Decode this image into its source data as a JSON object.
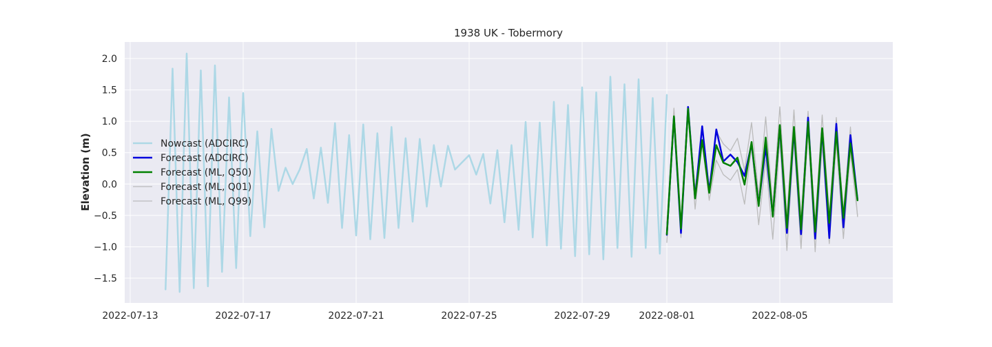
{
  "chart_data": {
    "type": "line",
    "title": "1938 UK - Tobermory",
    "xlabel": "",
    "ylabel": "Elevation (m)",
    "x_tick_labels": [
      "2022-07-13",
      "2022-07-17",
      "2022-07-21",
      "2022-07-25",
      "2022-07-29",
      "2022-08-01",
      "2022-08-05"
    ],
    "x_tick_dates": [
      "2022-07-13",
      "2022-07-17",
      "2022-07-21",
      "2022-07-25",
      "2022-07-29",
      "2022-08-01",
      "2022-08-05"
    ],
    "y_ticks": [
      -1.5,
      -1.0,
      -0.5,
      0.0,
      0.5,
      1.0,
      1.5,
      2.0
    ],
    "y_tick_labels": [
      "−1.5",
      "−1.0",
      "−0.5",
      "0.0",
      "0.5",
      "1.0",
      "1.5",
      "2.0"
    ],
    "xlim": [
      "2022-07-13",
      "2022-08-09"
    ],
    "ylim": [
      -1.9,
      2.25
    ],
    "grid": true,
    "legend_position": "center-left",
    "series": [
      {
        "name": "Nowcast (ADCIRC)",
        "color": "#add8e6",
        "width": 2.5,
        "points": [
          [
            "2022-07-14 06:00",
            -1.68
          ],
          [
            "2022-07-14 12:00",
            1.84
          ],
          [
            "2022-07-14 18:00",
            -1.72
          ],
          [
            "2022-07-15 00:00",
            2.08
          ],
          [
            "2022-07-15 06:00",
            -1.66
          ],
          [
            "2022-07-15 12:00",
            1.81
          ],
          [
            "2022-07-15 18:00",
            -1.63
          ],
          [
            "2022-07-16 00:00",
            1.89
          ],
          [
            "2022-07-16 06:00",
            -1.4
          ],
          [
            "2022-07-16 12:00",
            1.38
          ],
          [
            "2022-07-16 18:00",
            -1.34
          ],
          [
            "2022-07-17 00:00",
            1.45
          ],
          [
            "2022-07-17 06:00",
            -0.83
          ],
          [
            "2022-07-17 12:00",
            0.84
          ],
          [
            "2022-07-17 18:00",
            -0.69
          ],
          [
            "2022-07-18 00:00",
            0.88
          ],
          [
            "2022-07-18 06:00",
            -0.11
          ],
          [
            "2022-07-18 12:00",
            0.26
          ],
          [
            "2022-07-18 18:00",
            0.0
          ],
          [
            "2022-07-19 00:00",
            0.23
          ],
          [
            "2022-07-19 06:00",
            0.56
          ],
          [
            "2022-07-19 12:00",
            -0.23
          ],
          [
            "2022-07-19 18:00",
            0.58
          ],
          [
            "2022-07-20 00:00",
            -0.3
          ],
          [
            "2022-07-20 06:00",
            0.97
          ],
          [
            "2022-07-20 12:00",
            -0.7
          ],
          [
            "2022-07-20 18:00",
            0.78
          ],
          [
            "2022-07-21 00:00",
            -0.82
          ],
          [
            "2022-07-21 06:00",
            0.95
          ],
          [
            "2022-07-21 12:00",
            -0.88
          ],
          [
            "2022-07-21 18:00",
            0.81
          ],
          [
            "2022-07-22 00:00",
            -0.86
          ],
          [
            "2022-07-22 06:00",
            0.91
          ],
          [
            "2022-07-22 12:00",
            -0.7
          ],
          [
            "2022-07-22 18:00",
            0.73
          ],
          [
            "2022-07-23 00:00",
            -0.6
          ],
          [
            "2022-07-23 06:00",
            0.72
          ],
          [
            "2022-07-23 12:00",
            -0.36
          ],
          [
            "2022-07-23 18:00",
            0.62
          ],
          [
            "2022-07-24 00:00",
            -0.04
          ],
          [
            "2022-07-24 06:00",
            0.61
          ],
          [
            "2022-07-24 12:00",
            0.23
          ],
          [
            "2022-07-25 00:00",
            0.46
          ],
          [
            "2022-07-25 06:00",
            0.15
          ],
          [
            "2022-07-25 12:00",
            0.48
          ],
          [
            "2022-07-25 18:00",
            -0.31
          ],
          [
            "2022-07-26 00:00",
            0.54
          ],
          [
            "2022-07-26 06:00",
            -0.61
          ],
          [
            "2022-07-26 12:00",
            0.62
          ],
          [
            "2022-07-26 18:00",
            -0.73
          ],
          [
            "2022-07-27 00:00",
            0.99
          ],
          [
            "2022-07-27 06:00",
            -0.85
          ],
          [
            "2022-07-27 12:00",
            0.98
          ],
          [
            "2022-07-27 18:00",
            -0.98
          ],
          [
            "2022-07-28 00:00",
            1.31
          ],
          [
            "2022-07-28 06:00",
            -1.03
          ],
          [
            "2022-07-28 12:00",
            1.26
          ],
          [
            "2022-07-28 18:00",
            -1.15
          ],
          [
            "2022-07-29 00:00",
            1.54
          ],
          [
            "2022-07-29 06:00",
            -1.12
          ],
          [
            "2022-07-29 12:00",
            1.46
          ],
          [
            "2022-07-29 18:00",
            -1.2
          ],
          [
            "2022-07-30 00:00",
            1.71
          ],
          [
            "2022-07-30 06:00",
            -1.02
          ],
          [
            "2022-07-30 12:00",
            1.59
          ],
          [
            "2022-07-30 18:00",
            -1.16
          ],
          [
            "2022-07-31 00:00",
            1.67
          ],
          [
            "2022-07-31 06:00",
            -1.02
          ],
          [
            "2022-07-31 12:00",
            1.37
          ],
          [
            "2022-07-31 18:00",
            -1.11
          ],
          [
            "2022-08-01 00:00",
            1.42
          ]
        ]
      },
      {
        "name": "Forecast (ML, Q01)",
        "color": "#bbbbbb",
        "width": 1.3,
        "points": [
          [
            "2022-08-01 00:00",
            -0.93
          ],
          [
            "2022-08-01 06:00",
            1.06
          ],
          [
            "2022-08-01 12:00",
            -0.85
          ],
          [
            "2022-08-01 18:00",
            1.14
          ],
          [
            "2022-08-02 00:00",
            -0.4
          ],
          [
            "2022-08-02 06:00",
            0.67
          ],
          [
            "2022-08-02 12:00",
            -0.26
          ],
          [
            "2022-08-02 18:00",
            0.38
          ],
          [
            "2022-08-03 00:00",
            0.15
          ],
          [
            "2022-08-03 06:00",
            0.06
          ],
          [
            "2022-08-03 12:00",
            0.23
          ],
          [
            "2022-08-03 18:00",
            -0.32
          ],
          [
            "2022-08-04 00:00",
            0.6
          ],
          [
            "2022-08-04 06:00",
            -0.65
          ],
          [
            "2022-08-04 12:00",
            0.38
          ],
          [
            "2022-08-04 18:00",
            -0.88
          ],
          [
            "2022-08-05 00:00",
            0.7
          ],
          [
            "2022-08-05 06:00",
            -1.06
          ],
          [
            "2022-08-05 12:00",
            0.7
          ],
          [
            "2022-08-05 18:00",
            -1.03
          ],
          [
            "2022-08-06 00:00",
            0.86
          ],
          [
            "2022-08-06 06:00",
            -1.08
          ],
          [
            "2022-08-06 12:00",
            0.63
          ],
          [
            "2022-08-06 18:00",
            -0.95
          ],
          [
            "2022-08-07 00:00",
            0.64
          ],
          [
            "2022-08-07 06:00",
            -0.87
          ],
          [
            "2022-08-07 12:00",
            0.5
          ],
          [
            "2022-08-07 18:00",
            -0.5
          ]
        ]
      },
      {
        "name": "Forecast (ML, Q99)",
        "color": "#bbbbbb",
        "width": 1.3,
        "points": [
          [
            "2022-08-01 00:00",
            -0.62
          ],
          [
            "2022-08-01 06:00",
            1.21
          ],
          [
            "2022-08-01 12:00",
            -0.6
          ],
          [
            "2022-08-01 18:00",
            1.22
          ],
          [
            "2022-08-02 00:00",
            -0.1
          ],
          [
            "2022-08-02 06:00",
            0.88
          ],
          [
            "2022-08-02 12:00",
            -0.05
          ],
          [
            "2022-08-02 18:00",
            0.84
          ],
          [
            "2022-08-03 00:00",
            0.64
          ],
          [
            "2022-08-03 06:00",
            0.53
          ],
          [
            "2022-08-03 12:00",
            0.73
          ],
          [
            "2022-08-03 18:00",
            0.22
          ],
          [
            "2022-08-04 00:00",
            0.98
          ],
          [
            "2022-08-04 06:00",
            -0.18
          ],
          [
            "2022-08-04 12:00",
            1.07
          ],
          [
            "2022-08-04 18:00",
            -0.35
          ],
          [
            "2022-08-05 00:00",
            1.23
          ],
          [
            "2022-08-05 06:00",
            -0.52
          ],
          [
            "2022-08-05 12:00",
            1.18
          ],
          [
            "2022-08-05 18:00",
            -0.55
          ],
          [
            "2022-08-06 00:00",
            1.16
          ],
          [
            "2022-08-06 06:00",
            -0.62
          ],
          [
            "2022-08-06 12:00",
            1.1
          ],
          [
            "2022-08-06 18:00",
            -0.48
          ],
          [
            "2022-08-07 00:00",
            1.06
          ],
          [
            "2022-08-07 06:00",
            -0.44
          ],
          [
            "2022-08-07 12:00",
            0.91
          ],
          [
            "2022-08-07 18:00",
            -0.52
          ]
        ]
      },
      {
        "name": "Forecast (ADCIRC)",
        "color": "#0000dd",
        "width": 2.5,
        "points": [
          [
            "2022-08-01 00:00",
            -0.81
          ],
          [
            "2022-08-01 06:00",
            1.07
          ],
          [
            "2022-08-01 12:00",
            -0.78
          ],
          [
            "2022-08-01 18:00",
            1.23
          ],
          [
            "2022-08-02 00:00",
            -0.22
          ],
          [
            "2022-08-02 06:00",
            0.92
          ],
          [
            "2022-08-02 12:00",
            -0.13
          ],
          [
            "2022-08-02 18:00",
            0.87
          ],
          [
            "2022-08-03 00:00",
            0.36
          ],
          [
            "2022-08-03 06:00",
            0.47
          ],
          [
            "2022-08-03 12:00",
            0.35
          ],
          [
            "2022-08-03 18:00",
            0.13
          ],
          [
            "2022-08-04 00:00",
            0.64
          ],
          [
            "2022-08-04 06:00",
            -0.33
          ],
          [
            "2022-08-04 12:00",
            0.59
          ],
          [
            "2022-08-04 18:00",
            -0.51
          ],
          [
            "2022-08-05 00:00",
            0.92
          ],
          [
            "2022-08-05 06:00",
            -0.78
          ],
          [
            "2022-08-05 12:00",
            0.87
          ],
          [
            "2022-08-05 18:00",
            -0.8
          ],
          [
            "2022-08-06 00:00",
            1.06
          ],
          [
            "2022-08-06 06:00",
            -0.87
          ],
          [
            "2022-08-06 12:00",
            0.87
          ],
          [
            "2022-08-06 18:00",
            -0.86
          ],
          [
            "2022-08-07 00:00",
            0.96
          ],
          [
            "2022-08-07 06:00",
            -0.69
          ],
          [
            "2022-08-07 12:00",
            0.78
          ],
          [
            "2022-08-07 18:00",
            -0.25
          ]
        ]
      },
      {
        "name": "Forecast (ML, Q50)",
        "color": "#008000",
        "width": 2.5,
        "points": [
          [
            "2022-08-01 00:00",
            -0.8
          ],
          [
            "2022-08-01 06:00",
            1.08
          ],
          [
            "2022-08-01 12:00",
            -0.71
          ],
          [
            "2022-08-01 18:00",
            1.2
          ],
          [
            "2022-08-02 00:00",
            -0.23
          ],
          [
            "2022-08-02 06:00",
            0.7
          ],
          [
            "2022-08-02 12:00",
            -0.14
          ],
          [
            "2022-08-02 18:00",
            0.62
          ],
          [
            "2022-08-03 00:00",
            0.34
          ],
          [
            "2022-08-03 06:00",
            0.29
          ],
          [
            "2022-08-03 12:00",
            0.42
          ],
          [
            "2022-08-03 18:00",
            -0.01
          ],
          [
            "2022-08-04 00:00",
            0.67
          ],
          [
            "2022-08-04 06:00",
            -0.35
          ],
          [
            "2022-08-04 12:00",
            0.74
          ],
          [
            "2022-08-04 18:00",
            -0.52
          ],
          [
            "2022-08-05 00:00",
            0.94
          ],
          [
            "2022-08-05 06:00",
            -0.7
          ],
          [
            "2022-08-05 12:00",
            0.91
          ],
          [
            "2022-08-05 18:00",
            -0.72
          ],
          [
            "2022-08-06 00:00",
            0.99
          ],
          [
            "2022-08-06 06:00",
            -0.76
          ],
          [
            "2022-08-06 12:00",
            0.89
          ],
          [
            "2022-08-06 18:00",
            -0.62
          ],
          [
            "2022-08-07 00:00",
            0.83
          ],
          [
            "2022-08-07 06:00",
            -0.54
          ],
          [
            "2022-08-07 12:00",
            0.65
          ],
          [
            "2022-08-07 18:00",
            -0.26
          ]
        ]
      }
    ],
    "legend_order": [
      "Nowcast (ADCIRC)",
      "Forecast (ADCIRC)",
      "Forecast (ML, Q50)",
      "Forecast (ML, Q01)",
      "Forecast (ML, Q99)"
    ]
  },
  "colors": {
    "plot_background": "#eaeaf2",
    "grid": "#ffffff",
    "text": "#262626"
  }
}
